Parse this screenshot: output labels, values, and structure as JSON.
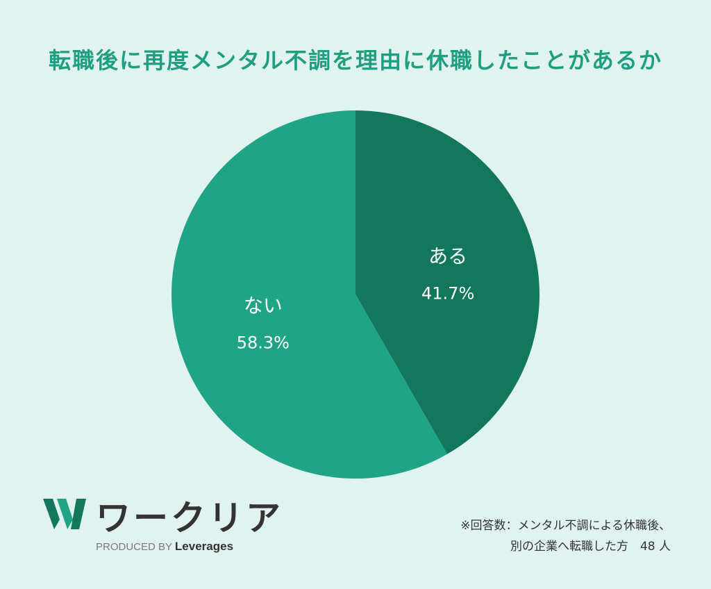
{
  "chart_data": {
    "type": "pie",
    "title": "転職後に再度メンタル不調を理由に休職したことがあるか",
    "slices": [
      {
        "label": "ある",
        "value": 41.7,
        "value_label": "41.7%",
        "color": "#12775c"
      },
      {
        "label": "ない",
        "value": 58.3,
        "value_label": "58.3%",
        "color": "#1fa585"
      }
    ]
  },
  "branding": {
    "logo_text": "ワークリア",
    "produced_by": "PRODUCED BY",
    "brand": "Leverages"
  },
  "footnote": {
    "line1": "※回答数：メンタル不調による休職後、",
    "line2": "別の企業へ転職した方　48 人"
  }
}
